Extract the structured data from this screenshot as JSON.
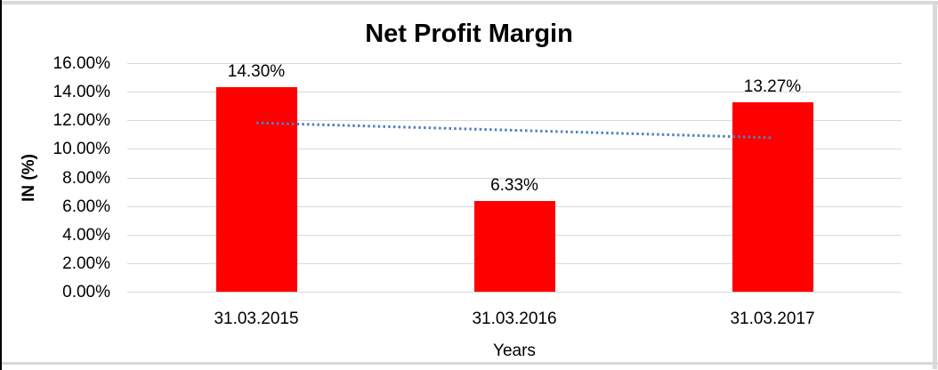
{
  "frame": {
    "background": "#ffffff",
    "left_border_color": "#000000",
    "edge_strip_color": "#d9d9d9"
  },
  "chart_data": {
    "type": "bar",
    "title": "Net Profit Margin",
    "xlabel": "Years",
    "ylabel": "IN (%)",
    "categories": [
      "31.03.2015",
      "31.03.2016",
      "31.03.2017"
    ],
    "values": [
      14.3,
      6.33,
      13.27
    ],
    "data_labels": [
      "14.30%",
      "6.33%",
      "13.27%"
    ],
    "y_ticks": [
      {
        "value": 16,
        "label": "16.00%"
      },
      {
        "value": 14,
        "label": "14.00%"
      },
      {
        "value": 12,
        "label": "12.00%"
      },
      {
        "value": 10,
        "label": "10.00%"
      },
      {
        "value": 8,
        "label": "8.00%"
      },
      {
        "value": 6,
        "label": "6.00%"
      },
      {
        "value": 4,
        "label": "4.00%"
      },
      {
        "value": 2,
        "label": "2.00%"
      },
      {
        "value": 0,
        "label": "0.00%"
      }
    ],
    "ylim": [
      0,
      16
    ],
    "grid": true,
    "legend": "none",
    "bar_color": "#ff0000",
    "gridline_color": "#d9d9d9",
    "trendline": {
      "type": "linear",
      "style": "dotted",
      "color": "#4f81bd",
      "start_value": 11.82,
      "end_value": 10.78
    }
  }
}
